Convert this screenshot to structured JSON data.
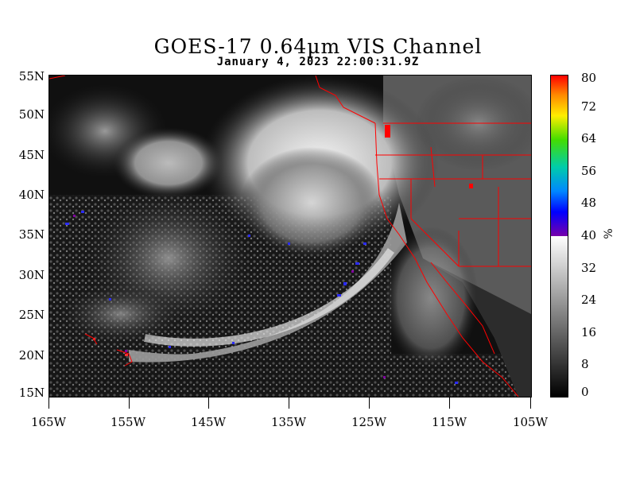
{
  "title": "GOES-17  0.64µm VIS Channel",
  "subtitle": "January  4,  2023 22:00:31.9Z",
  "lat_labels": [
    "55N",
    "50N",
    "45N",
    "40N",
    "35N",
    "30N",
    "25N",
    "20N",
    "15N"
  ],
  "lon_labels": [
    "165W",
    "155W",
    "145W",
    "135W",
    "125W",
    "115W",
    "105W"
  ],
  "colorbar": {
    "ticks": [
      "80",
      "72",
      "64",
      "56",
      "48",
      "40",
      "32",
      "24",
      "16",
      "8",
      "0"
    ],
    "unit": "%"
  },
  "colors": {
    "border_lines": "#ff0000",
    "cloud_bright": "#e8e8e8",
    "ocean": "#0a0a0a"
  }
}
